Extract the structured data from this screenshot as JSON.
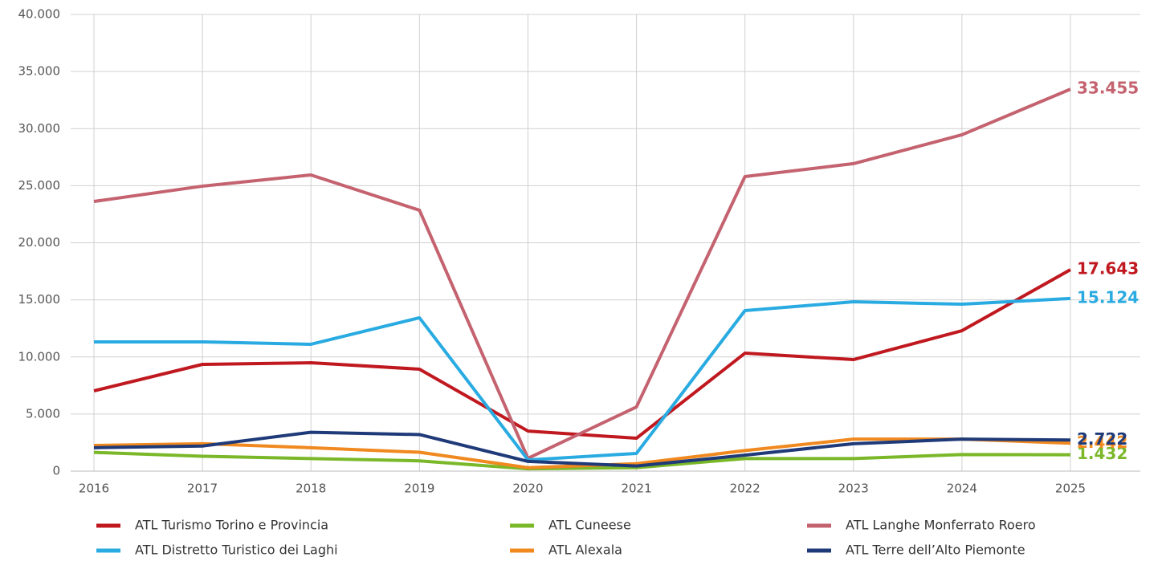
{
  "chart_data": {
    "type": "line",
    "categories": [
      "2016",
      "2017",
      "2018",
      "2019",
      "2020",
      "2021",
      "2022",
      "2023",
      "2024",
      "2025"
    ],
    "ylim": [
      0,
      40000
    ],
    "yticks": [
      0,
      {
        "value": 5000,
        "label": "5.000"
      },
      {
        "value": 10000,
        "label": "10.000"
      },
      {
        "value": 15000,
        "label": "15.000"
      },
      {
        "value": 20000,
        "label": "20.000"
      },
      {
        "value": 25000,
        "label": "25.000"
      },
      {
        "value": 30000,
        "label": "30.000"
      },
      {
        "value": 35000,
        "label": "35.000"
      },
      {
        "value": 40000,
        "label": "40.000"
      }
    ],
    "grid": true,
    "legend": "bottom",
    "series": [
      {
        "name": "ATL Turismo Torino e Provincia",
        "color": "#c0181f",
        "values": [
          7030,
          9350,
          9490,
          8930,
          3510,
          2880,
          10330,
          9770,
          12300,
          17643
        ],
        "value_labels": [
          null,
          null,
          null,
          null,
          null,
          null,
          null,
          null,
          null,
          "17.643"
        ]
      },
      {
        "name": "ATL Cuneese",
        "color": "#7ab829",
        "values": [
          1640,
          1300,
          1100,
          900,
          200,
          300,
          1100,
          1100,
          1450,
          1432
        ],
        "value_labels": [
          null,
          null,
          null,
          null,
          null,
          null,
          null,
          null,
          null,
          "1.432"
        ]
      },
      {
        "name": "ATL Langhe Monferrato Roero",
        "color": "#c4636f",
        "values": [
          23620,
          24960,
          25940,
          22850,
          1120,
          5620,
          25800,
          26930,
          29460,
          33455
        ],
        "value_labels": [
          null,
          null,
          null,
          null,
          null,
          null,
          null,
          null,
          null,
          "33.455"
        ]
      },
      {
        "name": "ATL Distretto Turistico dei Laghi",
        "color": "#29abe2",
        "values": [
          11320,
          11320,
          11110,
          13430,
          980,
          1550,
          14060,
          14830,
          14620,
          15124
        ],
        "value_labels": [
          null,
          null,
          null,
          null,
          null,
          null,
          null,
          null,
          null,
          "15.124"
        ]
      },
      {
        "name": "ATL Alexala",
        "color": "#f0891f",
        "values": [
          2250,
          2400,
          2050,
          1650,
          300,
          650,
          1800,
          2800,
          2800,
          2442
        ],
        "value_labels": [
          null,
          null,
          null,
          null,
          null,
          null,
          null,
          null,
          null,
          "2.442"
        ]
      },
      {
        "name": "ATL Terre dell’Alto Piemonte",
        "color": "#1f3a78",
        "values": [
          2050,
          2200,
          3400,
          3200,
          850,
          450,
          1400,
          2400,
          2800,
          2722
        ],
        "value_labels": [
          null,
          null,
          null,
          null,
          null,
          null,
          null,
          null,
          null,
          "2.722"
        ]
      }
    ]
  }
}
